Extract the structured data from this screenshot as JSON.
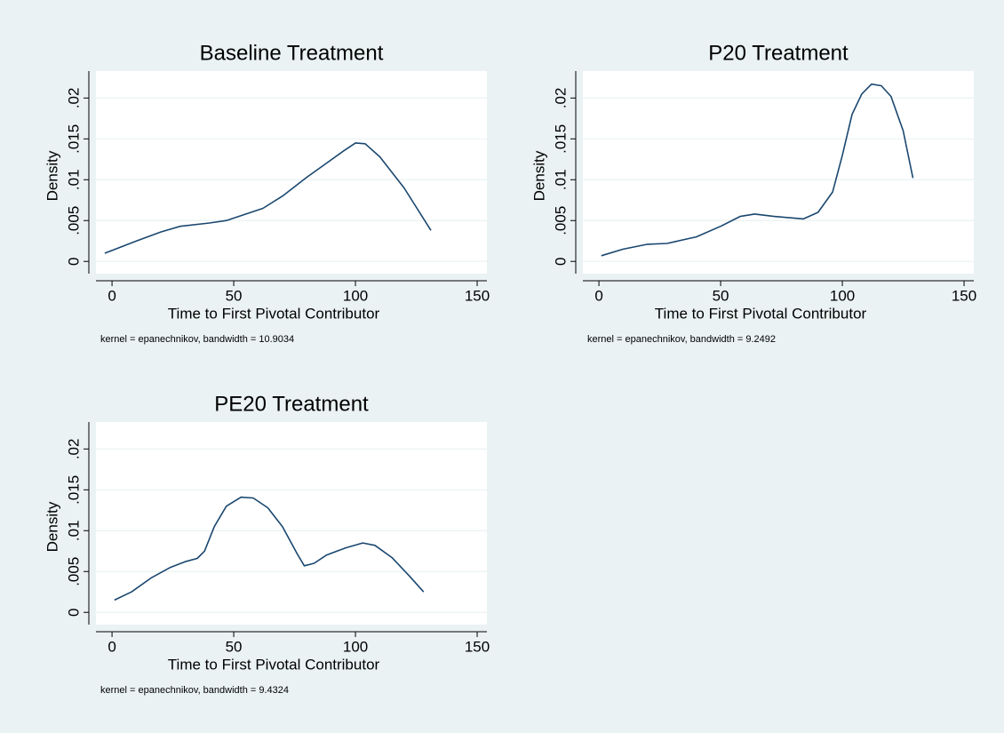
{
  "chart_data": [
    {
      "type": "line",
      "title": "Baseline Treatment",
      "xlabel": "Time to First Pivotal Contributor",
      "ylabel": "Density",
      "note": "kernel = epanechnikov, bandwidth = 10.9034",
      "color": "#1a476f",
      "x": [
        -3,
        10,
        20,
        28,
        40,
        47,
        55,
        62,
        70,
        80,
        88,
        95,
        100,
        104,
        110,
        120,
        131
      ],
      "values": [
        0.001,
        0.0025,
        0.0036,
        0.0043,
        0.0047,
        0.005,
        0.0058,
        0.0065,
        0.008,
        0.0103,
        0.012,
        0.0135,
        0.0145,
        0.0144,
        0.0128,
        0.009,
        0.0038
      ],
      "xlim": [
        -6.6,
        154
      ],
      "xticks": [
        0,
        50,
        100,
        150
      ],
      "ylim": [
        -0.0015,
        0.0233
      ],
      "yticks": [
        0,
        {
          "value": 0.005,
          "label": ".005"
        },
        {
          "value": 0.01,
          "label": ".01"
        },
        {
          "value": 0.015,
          "label": ".015"
        },
        {
          "value": 0.02,
          "label": ".02"
        }
      ],
      "grid": true
    },
    {
      "type": "line",
      "title": "P20 Treatment",
      "xlabel": "Time to First Pivotal Contributor",
      "ylabel": "Density",
      "note": "kernel = epanechnikov, bandwidth = 9.2492",
      "color": "#1a476f",
      "x": [
        1,
        10,
        20,
        28,
        40,
        50,
        58,
        64,
        72,
        84,
        90,
        96,
        100,
        104,
        108,
        112,
        116,
        120,
        125,
        129
      ],
      "values": [
        0.0007,
        0.0015,
        0.0021,
        0.0022,
        0.003,
        0.0043,
        0.0055,
        0.0058,
        0.0055,
        0.0052,
        0.006,
        0.0085,
        0.013,
        0.018,
        0.0205,
        0.0217,
        0.0215,
        0.0202,
        0.016,
        0.0102
      ],
      "xlim": [
        -6.6,
        154
      ],
      "xticks": [
        0,
        50,
        100,
        150
      ],
      "ylim": [
        -0.0015,
        0.0233
      ],
      "yticks": [
        0,
        {
          "value": 0.005,
          "label": ".005"
        },
        {
          "value": 0.01,
          "label": ".01"
        },
        {
          "value": 0.015,
          "label": ".015"
        },
        {
          "value": 0.02,
          "label": ".02"
        }
      ],
      "grid": true
    },
    {
      "type": "line",
      "title": "PE20 Treatment",
      "xlabel": "Time to First Pivotal Contributor",
      "ylabel": "Density",
      "note": "kernel = epanechnikov, bandwidth = 9.4324",
      "color": "#1a476f",
      "x": [
        1,
        8,
        16,
        24,
        30,
        35,
        38,
        42,
        47,
        53,
        58,
        64,
        70,
        76,
        79,
        83,
        88,
        96,
        103,
        108,
        115,
        122,
        128
      ],
      "values": [
        0.0015,
        0.0025,
        0.0042,
        0.0055,
        0.0062,
        0.0066,
        0.0075,
        0.0105,
        0.013,
        0.0141,
        0.014,
        0.0128,
        0.0105,
        0.0072,
        0.0057,
        0.006,
        0.007,
        0.0079,
        0.0085,
        0.0082,
        0.0067,
        0.0045,
        0.0025
      ],
      "xlim": [
        -6.6,
        154
      ],
      "xticks": [
        0,
        50,
        100,
        150
      ],
      "ylim": [
        -0.0015,
        0.0233
      ],
      "yticks": [
        0,
        {
          "value": 0.005,
          "label": ".005"
        },
        {
          "value": 0.01,
          "label": ".01"
        },
        {
          "value": 0.015,
          "label": ".015"
        },
        {
          "value": 0.02,
          "label": ".02"
        }
      ],
      "grid": true
    }
  ]
}
